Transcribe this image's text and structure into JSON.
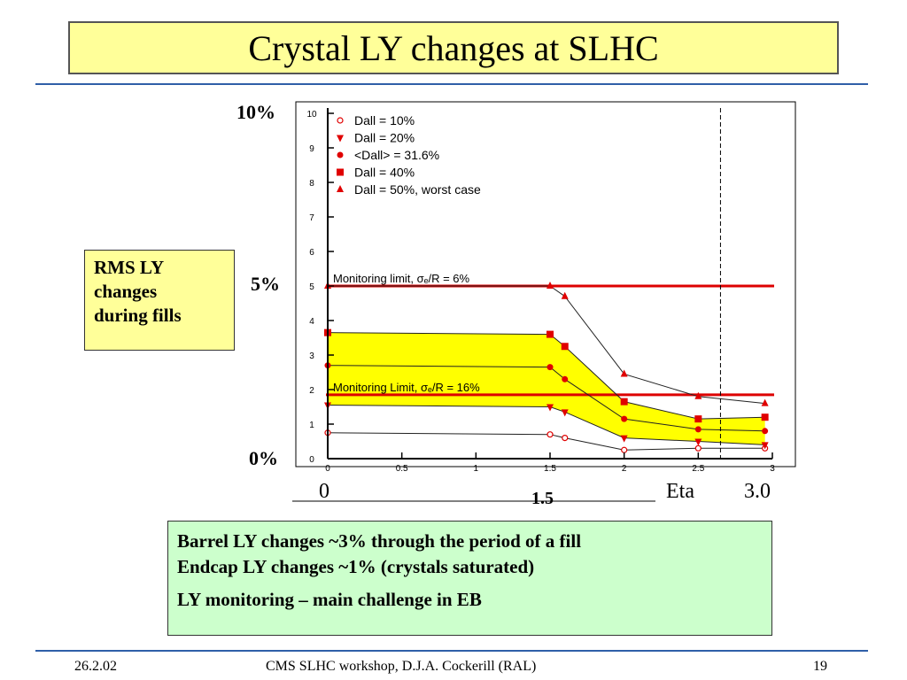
{
  "slide": {
    "title": "Crystal LY changes at SLHC",
    "side_box_lines": [
      "RMS LY",
      "changes",
      "during fills"
    ],
    "pct_labels": {
      "top": "10%",
      "mid": "5%",
      "bottom": "0%"
    },
    "axis_extra": {
      "start": "0",
      "mid": "1.5",
      "name": "Eta",
      "end": "3.0"
    },
    "notes": [
      "Barrel LY changes  ~3% through the period of a fill",
      "Endcap LY changes ~1% (crystals saturated)",
      "LY monitoring – main challenge in EB"
    ],
    "footer": {
      "date": "26.2.02",
      "center": "CMS SLHC workshop, D.J.A. Cockerill (RAL)",
      "page": "19"
    },
    "colors": {
      "title_bg": "#ffff99",
      "note_bg": "#ccffcc",
      "rule": "#2f5fa8",
      "band": "#ffff00",
      "markers": "#e00000"
    }
  },
  "chart_data": {
    "type": "line",
    "xlim": [
      0,
      3
    ],
    "ylim": [
      0,
      10
    ],
    "x_ticks": [
      "0",
      "0.5",
      "1",
      "1.5",
      "2",
      "2.5",
      "3"
    ],
    "y_ticks": [
      "0",
      "1",
      "2",
      "3",
      "4",
      "5",
      "6",
      "7",
      "8",
      "9",
      "10"
    ],
    "legend_position": "top-left",
    "series": [
      {
        "name": "Dall = 10%",
        "marker": "open-circle",
        "x": [
          0,
          1.5,
          1.6,
          2,
          2.5,
          2.95
        ],
        "y": [
          0.75,
          0.7,
          0.6,
          0.25,
          0.3,
          0.3
        ]
      },
      {
        "name": "Dall = 20%",
        "marker": "triangle-down",
        "x": [
          0,
          1.5,
          1.6,
          2,
          2.5,
          2.95
        ],
        "y": [
          1.55,
          1.5,
          1.35,
          0.6,
          0.5,
          0.4
        ]
      },
      {
        "name": "<Dall> = 31.6%",
        "marker": "circle",
        "x": [
          0,
          1.5,
          1.6,
          2,
          2.5,
          2.95
        ],
        "y": [
          2.7,
          2.65,
          2.3,
          1.15,
          0.85,
          0.8
        ]
      },
      {
        "name": "Dall = 40%",
        "marker": "square",
        "x": [
          0,
          1.5,
          1.6,
          2,
          2.5,
          2.95
        ],
        "y": [
          3.65,
          3.6,
          3.25,
          1.65,
          1.15,
          1.2
        ]
      },
      {
        "name": "Dall = 50%, worst case",
        "marker": "triangle-up",
        "x": [
          0,
          1.5,
          1.6,
          2,
          2.5,
          2.95
        ],
        "y": [
          5.0,
          5.0,
          4.7,
          2.45,
          1.8,
          1.6
        ]
      }
    ],
    "band": {
      "upper": [
        3.65,
        3.6,
        3.25,
        1.65,
        1.15,
        1.2
      ],
      "lower": [
        1.55,
        1.5,
        1.35,
        0.6,
        0.5,
        0.4
      ],
      "x": [
        0,
        1.5,
        1.6,
        2,
        2.5,
        2.95
      ]
    },
    "hlines": [
      {
        "y": 5.0,
        "label": "Monitoring limit, σₑ/R = 6%"
      },
      {
        "y": 1.85,
        "label": "Monitoring Limit, σₑ/R = 16%"
      }
    ],
    "vline": {
      "x": 2.65,
      "style": "dashed"
    }
  }
}
